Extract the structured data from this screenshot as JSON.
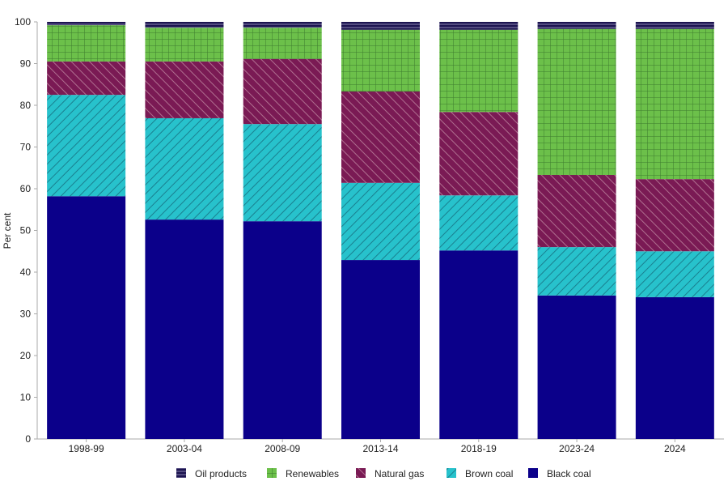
{
  "chart_data": {
    "type": "bar",
    "stacked": true,
    "title": "",
    "xlabel": "",
    "ylabel": "Per cent",
    "ylim": [
      0,
      100
    ],
    "yticks": [
      0,
      10,
      20,
      30,
      40,
      50,
      60,
      70,
      80,
      90,
      100
    ],
    "categories": [
      "1998-99",
      "2003-04",
      "2008-09",
      "2013-14",
      "2018-19",
      "2023-24",
      "2024"
    ],
    "legend_position": "bottom",
    "series": [
      {
        "name": "Black coal",
        "color": "#0b008a",
        "pattern": "solid",
        "values": [
          58.2,
          52.6,
          52.2,
          42.9,
          45.2,
          34.4,
          34.0
        ]
      },
      {
        "name": "Brown coal",
        "color": "#27c2cc",
        "pattern": "diagonal",
        "values": [
          24.3,
          24.3,
          23.3,
          18.5,
          13.2,
          11.6,
          11.0
        ]
      },
      {
        "name": "Natural gas",
        "color": "#7a1a54",
        "pattern": "diagonal-back",
        "values": [
          8.0,
          13.6,
          15.6,
          21.9,
          20.0,
          17.3,
          17.3
        ]
      },
      {
        "name": "Renewables",
        "color": "#6cc04a",
        "pattern": "grid",
        "values": [
          8.7,
          8.1,
          7.5,
          14.8,
          19.7,
          35.0,
          36.0
        ]
      },
      {
        "name": "Oil products",
        "color": "#1c1450",
        "pattern": "horizontal",
        "values": [
          0.8,
          1.4,
          1.4,
          1.9,
          1.9,
          1.7,
          1.7
        ]
      }
    ],
    "legend_order": [
      "Oil products",
      "Renewables",
      "Natural gas",
      "Brown coal",
      "Black coal"
    ]
  }
}
